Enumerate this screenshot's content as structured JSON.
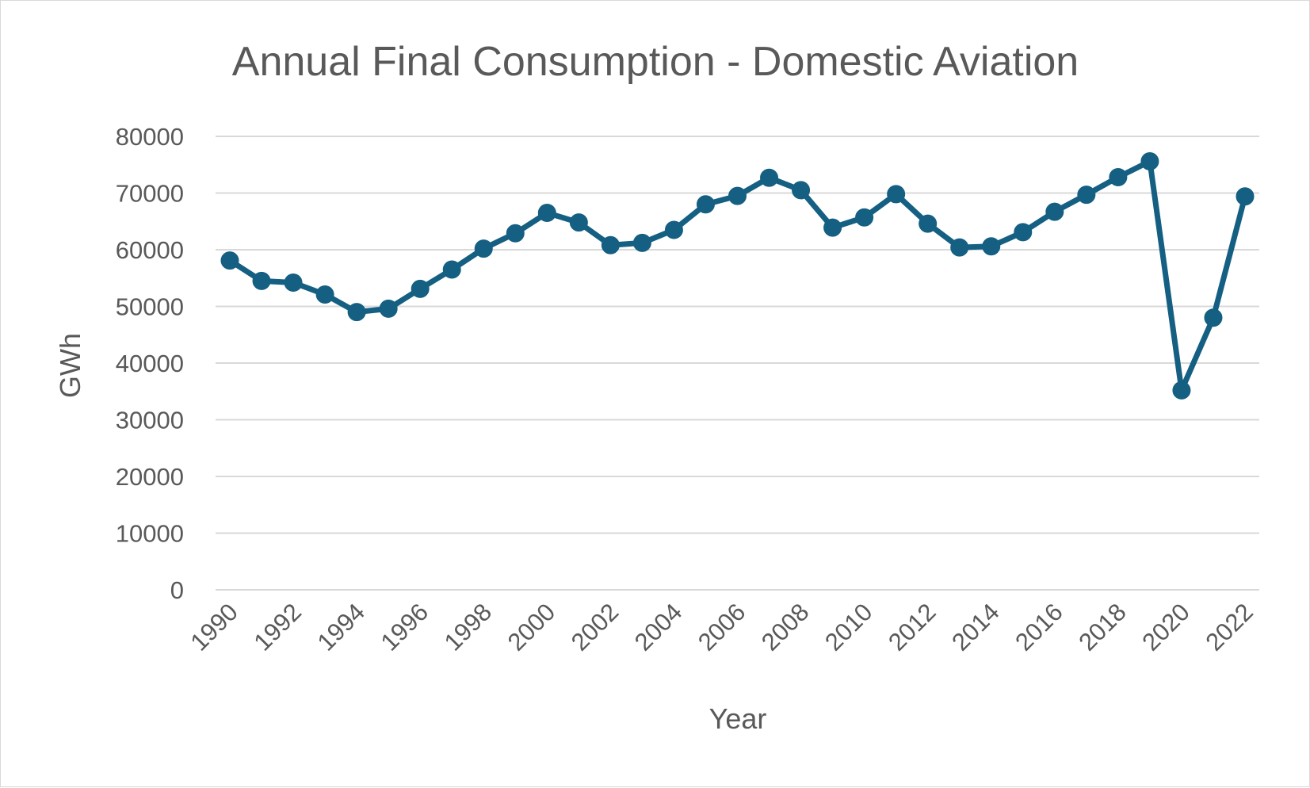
{
  "chart_data": {
    "type": "line",
    "title": "Annual Final Consumption - Domestic Aviation",
    "xlabel": "Year",
    "ylabel": "GWh",
    "ylim": [
      0,
      80000
    ],
    "yticks": [
      "0",
      "10000",
      "20000",
      "30000",
      "40000",
      "50000",
      "60000",
      "70000",
      "80000"
    ],
    "xtick_labels": [
      "1990",
      "1992",
      "1994",
      "1996",
      "1998",
      "2000",
      "2002",
      "2004",
      "2006",
      "2008",
      "2010",
      "2012",
      "2014",
      "2016",
      "2018",
      "2020",
      "2022"
    ],
    "grid": true,
    "legend": "none",
    "colors": {
      "series": "#145f82",
      "grid": "#d9d9d9",
      "text": "#595959"
    },
    "x": [
      1990,
      1991,
      1992,
      1993,
      1994,
      1995,
      1996,
      1997,
      1998,
      1999,
      2000,
      2001,
      2002,
      2003,
      2004,
      2005,
      2006,
      2007,
      2008,
      2009,
      2010,
      2011,
      2012,
      2013,
      2014,
      2015,
      2016,
      2017,
      2018,
      2019,
      2020,
      2021,
      2022
    ],
    "series": [
      {
        "values": [
          58100,
          54500,
          54200,
          52100,
          49000,
          49600,
          53100,
          56500,
          60200,
          62900,
          66500,
          64800,
          60800,
          61200,
          63500,
          68000,
          69500,
          72700,
          70500,
          63900,
          65700,
          69800,
          64600,
          60400,
          60600,
          63100,
          66700,
          69700,
          72800,
          75600,
          35200,
          48000,
          69400
        ]
      }
    ]
  }
}
